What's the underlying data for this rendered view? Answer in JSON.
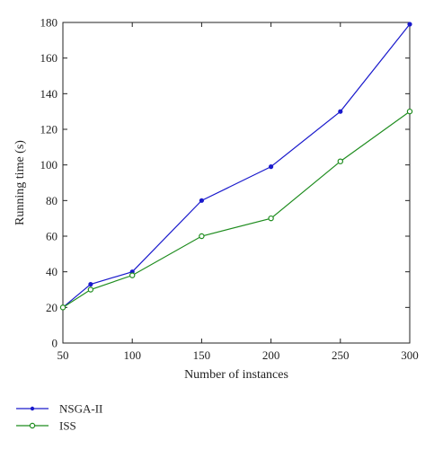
{
  "chart_data": {
    "type": "line",
    "x": [
      50,
      70,
      100,
      150,
      200,
      250,
      300
    ],
    "series": [
      {
        "name": "NSGA-II",
        "color": "#1a1acc",
        "marker": "filled-dot",
        "values": [
          20,
          33,
          40,
          80,
          99,
          130,
          179
        ]
      },
      {
        "name": "ISS",
        "color": "#1e8c1e",
        "marker": "open-circle",
        "values": [
          20,
          30,
          38,
          60,
          70,
          102,
          130
        ]
      }
    ],
    "xlabel": "Number of instances",
    "ylabel": "Running time (s)",
    "xlim": [
      50,
      300
    ],
    "ylim": [
      0,
      180
    ],
    "xticks": [
      50,
      100,
      150,
      200,
      250,
      300
    ],
    "yticks": [
      0,
      20,
      40,
      60,
      80,
      100,
      120,
      140,
      160,
      180
    ],
    "grid": false,
    "legend_position": "bottom-left, outside plot"
  }
}
